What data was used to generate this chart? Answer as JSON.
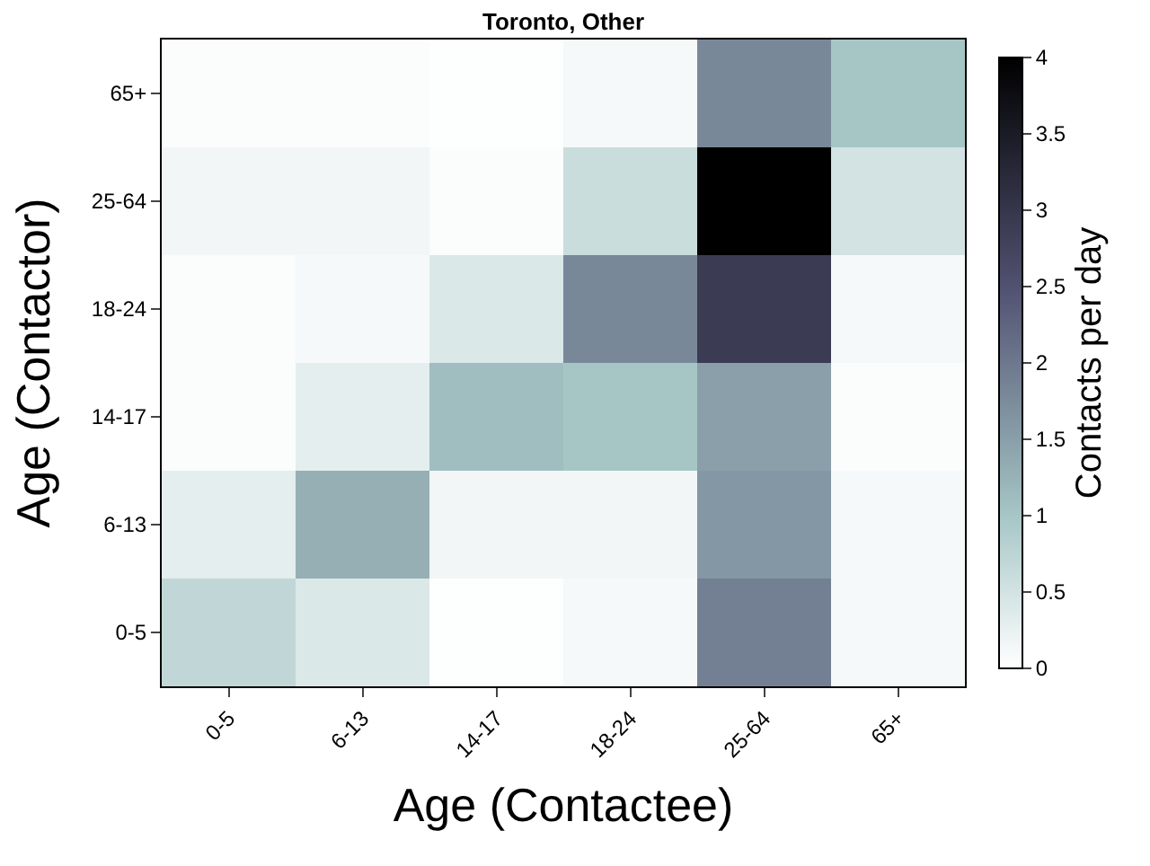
{
  "chart_data": {
    "type": "heatmap",
    "title": "Toronto, Other",
    "xlabel": "Age (Contactee)",
    "ylabel": "Age (Contactor)",
    "clabel": "Contacts per day",
    "categories": [
      "0-5",
      "6-13",
      "14-17",
      "18-24",
      "25-64",
      "65+"
    ],
    "y_categories": [
      "65+",
      "25-64",
      "18-24",
      "14-17",
      "6-13",
      "0-5"
    ],
    "cells": [
      [
        0.05,
        0.05,
        0.02,
        0.1,
        1.8,
        1.0
      ],
      [
        0.15,
        0.15,
        0.05,
        0.6,
        4.0,
        0.5
      ],
      [
        0.05,
        0.1,
        0.4,
        1.8,
        2.9,
        0.1
      ],
      [
        0.05,
        0.3,
        1.1,
        1.0,
        1.5,
        0.05
      ],
      [
        0.3,
        1.3,
        0.15,
        0.15,
        1.6,
        0.1
      ],
      [
        0.7,
        0.4,
        0.02,
        0.1,
        1.9,
        0.1
      ]
    ],
    "clim": [
      0,
      4
    ],
    "cticks": [
      0,
      0.5,
      1,
      1.5,
      2,
      2.5,
      3,
      3.5,
      4
    ]
  }
}
